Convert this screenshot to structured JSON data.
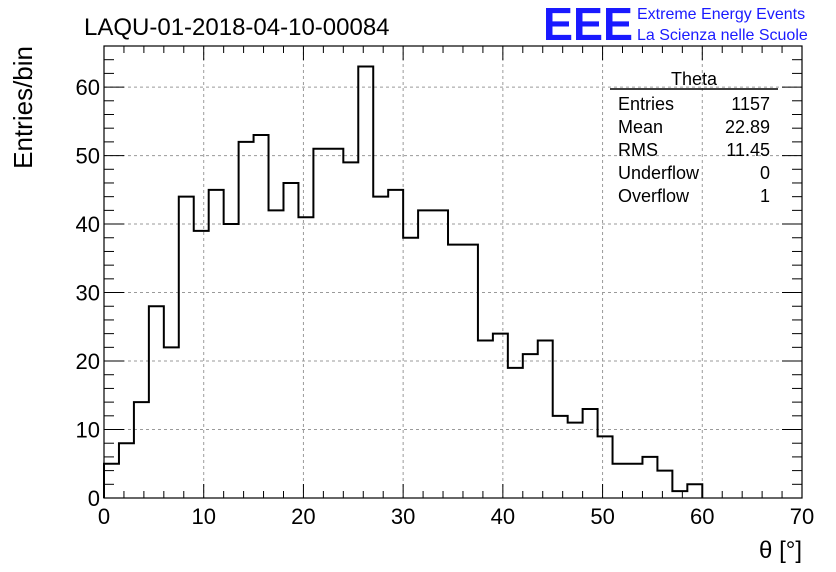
{
  "chart_data": {
    "type": "histogram",
    "title": "LAQU-01-2018-04-10-00084",
    "xlabel": "θ [°]",
    "ylabel": "Entries/bin",
    "xlim": [
      0,
      70
    ],
    "ylim": [
      0,
      66
    ],
    "x_ticks": [
      0,
      10,
      20,
      30,
      40,
      50,
      60,
      70
    ],
    "y_ticks": [
      0,
      10,
      20,
      30,
      40,
      50,
      60
    ],
    "grid": true,
    "bin_width": 1.5,
    "bin_start": 0,
    "values": [
      5,
      8,
      14,
      28,
      22,
      44,
      39,
      45,
      40,
      52,
      53,
      42,
      46,
      41,
      51,
      51,
      49,
      63,
      44,
      45,
      38,
      42,
      42,
      37,
      37,
      23,
      24,
      19,
      21,
      23,
      12,
      11,
      13,
      9,
      5,
      5,
      6,
      4,
      1,
      2
    ]
  },
  "stats": {
    "title": "Theta",
    "rows": [
      {
        "label": "Entries",
        "value": "1157"
      },
      {
        "label": "Mean",
        "value": "22.89"
      },
      {
        "label": "RMS",
        "value": "11.45"
      },
      {
        "label": "Underflow",
        "value": "0"
      },
      {
        "label": "Overflow",
        "value": "1"
      }
    ]
  },
  "logo": {
    "mark": "EEE",
    "line1": "Extreme Energy Events",
    "line2": "La Scienza nelle Scuole",
    "color": "#1a1aff"
  }
}
